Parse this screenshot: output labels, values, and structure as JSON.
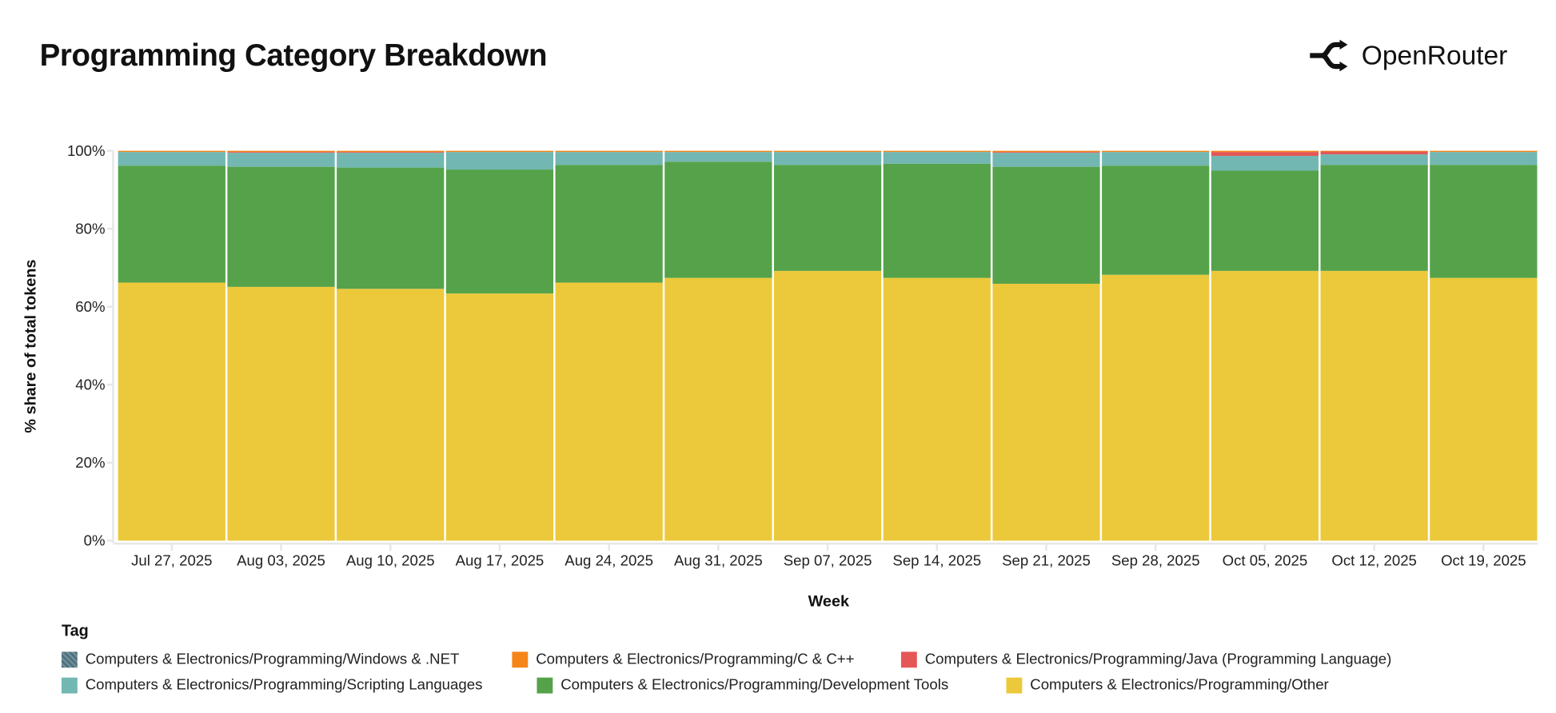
{
  "header": {
    "title": "Programming Category Breakdown",
    "brand": "OpenRouter",
    "brand_icon": "openrouter-logo-icon"
  },
  "chart_data": {
    "type": "bar",
    "stacked": true,
    "normalized": true,
    "title": "Programming Category Breakdown",
    "xlabel": "Week",
    "ylabel": "% share of total tokens",
    "ylim": [
      0,
      100
    ],
    "yticks": [
      "0%",
      "20%",
      "40%",
      "60%",
      "80%",
      "100%"
    ],
    "grid": false,
    "legend_title": "Tag",
    "legend_placement": "bottom",
    "categories": [
      "Jul 27, 2025",
      "Aug 03, 2025",
      "Aug 10, 2025",
      "Aug 17, 2025",
      "Aug 24, 2025",
      "Aug 31, 2025",
      "Sep 07, 2025",
      "Sep 14, 2025",
      "Sep 21, 2025",
      "Sep 28, 2025",
      "Oct 05, 2025",
      "Oct 12, 2025",
      "Oct 19, 2025"
    ],
    "series": [
      {
        "name": "Computers & Electronics/Programming/Other",
        "color": "#ecc93b",
        "values": [
          66.2,
          65.1,
          64.6,
          63.4,
          66.2,
          67.4,
          69.2,
          67.4,
          65.9,
          68.2,
          69.2,
          69.2,
          67.4
        ]
      },
      {
        "name": "Computers & Electronics/Programming/Development Tools",
        "color": "#55a24a",
        "values": [
          30.0,
          30.8,
          31.1,
          31.8,
          30.2,
          29.8,
          27.2,
          29.3,
          30.0,
          28.0,
          25.7,
          27.2,
          29.0
        ]
      },
      {
        "name": "Computers & Electronics/Programming/Scripting Languages",
        "color": "#72b7b2",
        "values": [
          3.5,
          3.6,
          3.8,
          4.5,
          3.3,
          2.5,
          3.3,
          3.0,
          3.6,
          3.5,
          3.8,
          2.7,
          3.3
        ]
      },
      {
        "name": "Computers & Electronics/Programming/Java (Programming Language)",
        "color": "#e45756",
        "values": [
          0,
          0.2,
          0.2,
          0,
          0,
          0,
          0,
          0,
          0.2,
          0,
          1.0,
          0.8,
          0
        ]
      },
      {
        "name": "Computers & Electronics/Programming/C & C++",
        "color": "#f58518",
        "values": [
          0.3,
          0.3,
          0.3,
          0.3,
          0.3,
          0.3,
          0.3,
          0.3,
          0.3,
          0.3,
          0.3,
          0.1,
          0.3
        ]
      },
      {
        "name": "Computers & Electronics/Programming/Windows & .NET",
        "color": "#4f6f7c",
        "values": [
          0,
          0,
          0,
          0,
          0,
          0,
          0,
          0,
          0,
          0,
          0,
          0,
          0
        ]
      }
    ],
    "legend_order": [
      5,
      4,
      3,
      2,
      1,
      0
    ]
  }
}
